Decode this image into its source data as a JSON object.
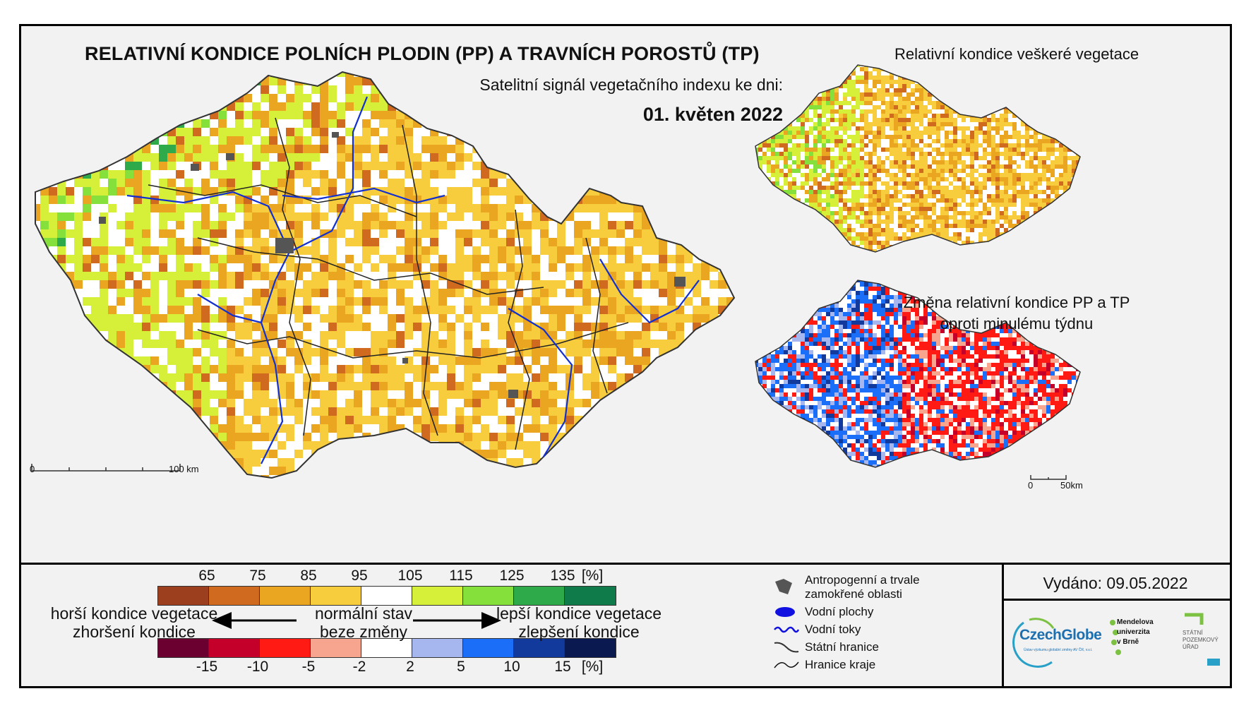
{
  "map": {
    "title": "RELATIVNÍ KONDICE POLNÍCH PLODIN (PP) A TRAVNÍCH POROSTŮ (TP)",
    "subtitle": "Satelitní signál vegetačního indexu ke dni:",
    "date": "01. květen 2022",
    "scale_start": "0",
    "scale_end": "100 km"
  },
  "inset_top": {
    "title": "Relativní kondice veškeré vegetace"
  },
  "inset_bottom": {
    "title_line1": "Změna relativní kondice PP a TP",
    "title_line2": "oproti minulému týdnu",
    "scale_start": "0",
    "scale_end": "50km"
  },
  "legend": {
    "condition_ticks": [
      "65",
      "75",
      "85",
      "95",
      "105",
      "115",
      "125",
      "135",
      "[%]"
    ],
    "condition_colors": [
      "#9b3f1f",
      "#cf6a1f",
      "#eaa521",
      "#f7cd3e",
      "#ffffff",
      "#d6f03a",
      "#86e03c",
      "#2eaa4b",
      "#0f7a4a"
    ],
    "change_ticks": [
      "-15",
      "-10",
      "-5",
      "-2",
      "2",
      "5",
      "10",
      "15",
      "[%]"
    ],
    "change_colors": [
      "#6b0030",
      "#c4002a",
      "#ff1a14",
      "#f7a58f",
      "#ffffff",
      "#a5b7ee",
      "#1a6ef7",
      "#123a9c",
      "#0a1a50"
    ],
    "left_line1": "horší kondice vegetace",
    "left_line2": "zhoršení kondice",
    "mid_line1": "normální stav",
    "mid_line2": "beze změny",
    "right_line1": "lepší kondice vegetace",
    "right_line2": "zlepšení kondice",
    "key": [
      {
        "label": "Antropogenní a trvale zamokřené oblasti",
        "icon": "urban-area-icon"
      },
      {
        "label": "Vodní plochy",
        "icon": "water-body-icon"
      },
      {
        "label": "Vodní toky",
        "icon": "river-icon"
      },
      {
        "label": "Státní hranice",
        "icon": "state-border-icon"
      },
      {
        "label": "Hranice kraje",
        "icon": "region-border-icon"
      }
    ],
    "issued": "Vydáno: 09.05.2022",
    "logos": {
      "czechglobe": "CzechGlobe",
      "czechglobe_sub": "Ústav výzkumu globální změny AV ČR, v.v.i.",
      "mendel_1": "Mendelova",
      "mendel_2": "univerzita",
      "mendel_3": "v Brně",
      "spu_1": "STÁTNÍ",
      "spu_2": "POZEMKOVÝ",
      "spu_3": "ÚŘAD"
    }
  }
}
